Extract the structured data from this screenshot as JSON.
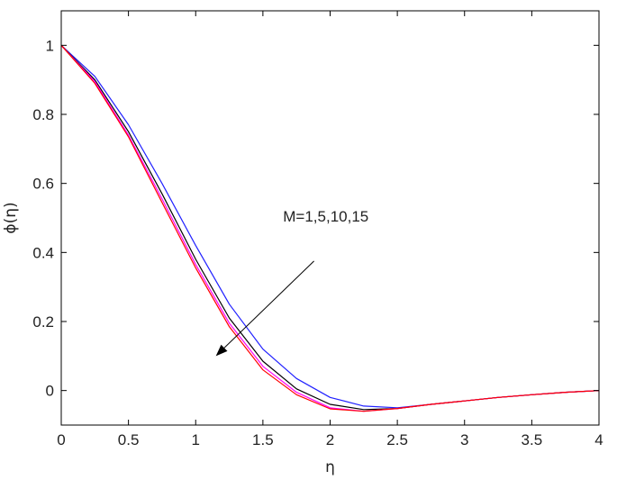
{
  "chart_data": {
    "type": "line",
    "title": "",
    "xlabel": "η",
    "ylabel": "ϕ(η)",
    "xlim": [
      0,
      4
    ],
    "ylim": [
      -0.1,
      1.1
    ],
    "xticks": [
      0,
      0.5,
      1,
      1.5,
      2,
      2.5,
      3,
      3.5,
      4
    ],
    "xtick_labels": [
      "0",
      "0.5",
      "1",
      "1.5",
      "2",
      "2.5",
      "3",
      "3.5",
      "4"
    ],
    "yticks": [
      0,
      0.2,
      0.4,
      0.6,
      0.8,
      1
    ],
    "ytick_labels": [
      "0",
      "0.2",
      "0.4",
      "0.6",
      "0.8",
      "1"
    ],
    "grid": false,
    "legend": "none",
    "annotation": {
      "text": "M=1,5,10,15",
      "x": 1.65,
      "y": 0.49,
      "arrow_from": [
        1.88,
        0.375
      ],
      "arrow_to": [
        1.15,
        0.1
      ]
    },
    "series": [
      {
        "color": "#2020ff",
        "x": [
          0,
          0.25,
          0.5,
          0.75,
          1.0,
          1.25,
          1.5,
          1.75,
          2.0,
          2.25,
          2.5,
          2.75,
          3.0,
          3.25,
          3.5,
          3.75,
          4.0
        ],
        "y": [
          1.0,
          0.91,
          0.77,
          0.6,
          0.42,
          0.25,
          0.12,
          0.035,
          -0.02,
          -0.045,
          -0.05,
          -0.04,
          -0.03,
          -0.02,
          -0.012,
          -0.005,
          0.0
        ]
      },
      {
        "color": "#000000",
        "x": [
          0,
          0.25,
          0.5,
          0.75,
          1.0,
          1.25,
          1.5,
          1.75,
          2.0,
          2.25,
          2.5,
          2.75,
          3.0,
          3.25,
          3.5,
          3.75,
          4.0
        ],
        "y": [
          1.0,
          0.9,
          0.75,
          0.57,
          0.38,
          0.21,
          0.085,
          0.005,
          -0.04,
          -0.055,
          -0.052,
          -0.04,
          -0.03,
          -0.02,
          -0.012,
          -0.005,
          0.0
        ]
      },
      {
        "color": "#ff00ff",
        "x": [
          0,
          0.25,
          0.5,
          0.75,
          1.0,
          1.25,
          1.5,
          1.75,
          2.0,
          2.25,
          2.5,
          2.75,
          3.0,
          3.25,
          3.5,
          3.75,
          4.0
        ],
        "y": [
          1.0,
          0.895,
          0.74,
          0.555,
          0.365,
          0.195,
          0.07,
          -0.005,
          -0.05,
          -0.06,
          -0.052,
          -0.04,
          -0.03,
          -0.02,
          -0.012,
          -0.005,
          0.0
        ]
      },
      {
        "color": "#ff0000",
        "x": [
          0,
          0.25,
          0.5,
          0.75,
          1.0,
          1.25,
          1.5,
          1.75,
          2.0,
          2.25,
          2.5,
          2.75,
          3.0,
          3.25,
          3.5,
          3.75,
          4.0
        ],
        "y": [
          1.0,
          0.89,
          0.735,
          0.545,
          0.355,
          0.185,
          0.06,
          -0.012,
          -0.053,
          -0.06,
          -0.052,
          -0.04,
          -0.03,
          -0.02,
          -0.012,
          -0.005,
          0.0
        ]
      }
    ]
  }
}
